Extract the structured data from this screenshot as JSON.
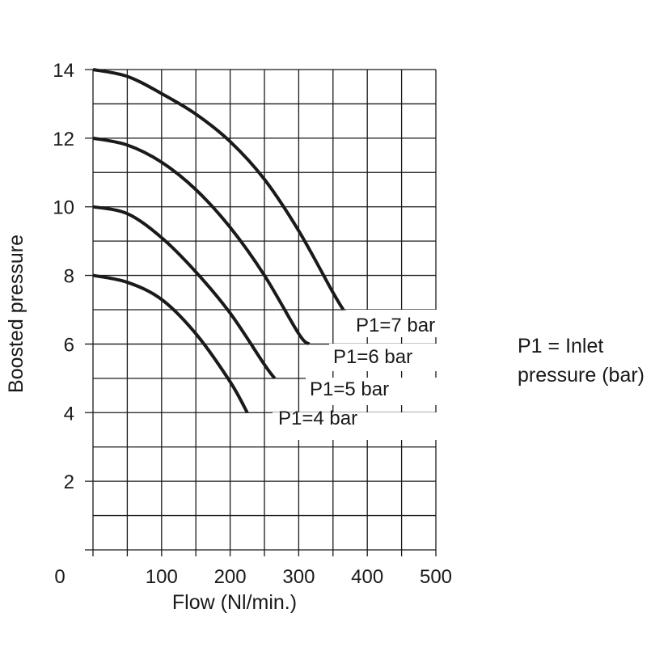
{
  "chart_data": {
    "type": "line",
    "xlabel": "Flow (Nl/min.)",
    "ylabel": "Boosted pressure",
    "xlim": [
      0,
      500
    ],
    "ylim": [
      0,
      14
    ],
    "x_ticks": [
      "0",
      "100",
      "200",
      "300",
      "400",
      "500"
    ],
    "y_ticks": [
      "2",
      "4",
      "6",
      "8",
      "10",
      "12",
      "14"
    ],
    "grid": true,
    "series": [
      {
        "name": "P1=7 bar",
        "x": [
          0,
          50,
          100,
          150,
          200,
          250,
          300,
          350,
          365
        ],
        "y": [
          14,
          13.8,
          13.3,
          12.7,
          11.9,
          10.8,
          9.3,
          7.5,
          7
        ]
      },
      {
        "name": "P1=6 bar",
        "x": [
          0,
          50,
          100,
          150,
          200,
          250,
          300,
          315
        ],
        "y": [
          12,
          11.8,
          11.3,
          10.5,
          9.4,
          8.0,
          6.3,
          6
        ]
      },
      {
        "name": "P1=5 bar",
        "x": [
          0,
          50,
          100,
          150,
          200,
          250,
          265
        ],
        "y": [
          10,
          9.8,
          9.1,
          8.1,
          6.9,
          5.4,
          5
        ]
      },
      {
        "name": "P1=4 bar",
        "x": [
          0,
          50,
          100,
          150,
          200,
          225
        ],
        "y": [
          8,
          7.8,
          7.3,
          6.3,
          4.9,
          4
        ]
      }
    ]
  },
  "legend_note": {
    "line1": "P1 = Inlet",
    "line2": "pressure (bar)"
  },
  "colors": {
    "curve": "#1a1a1a",
    "grid": "#1a1a1a"
  }
}
